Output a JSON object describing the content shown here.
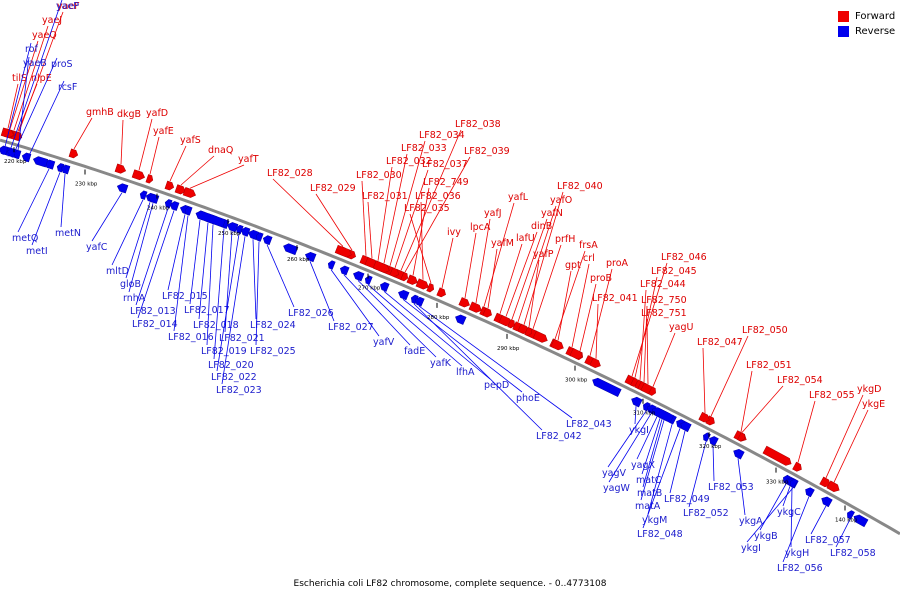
{
  "legend": {
    "forward_label": "Forward",
    "reverse_label": "Reverse",
    "forward_color": "#ee0000",
    "reverse_color": "#0000ee"
  },
  "caption": "Escherichia coli LF82 chromosome, complete sequence. - 0..4773108",
  "backbone_color": "#888888",
  "ticks": [
    "220 kbp",
    "230 kbp",
    "240 kbp",
    "250 kbp",
    "260 kbp",
    "270 kbp",
    "280 kbp",
    "290 kbp",
    "300 kbp",
    "310 kbp",
    "320 kbp",
    "330 kbp",
    "140 kbp"
  ],
  "forward_genes": [
    "yaeF",
    "yaeJ",
    "yaeQ",
    "tilS",
    "nlpE",
    "gmhB",
    "dkgB",
    "yafD",
    "yafE",
    "yafS",
    "dnaQ",
    "yafT",
    "LF82_028",
    "LF82_029",
    "LF82_030",
    "LF82_031",
    "LF82_032",
    "LF82_033",
    "LF82_034",
    "LF82_038",
    "LF82_039",
    "LF82_037",
    "LF82_749",
    "LF82_036",
    "LF82_035",
    "ivy",
    "lpcA",
    "yafJ",
    "yafL",
    "yafM",
    "lafU",
    "dinB",
    "yafN",
    "yafO",
    "LF82_040",
    "prfH",
    "yafP",
    "frsA",
    "crl",
    "gpt",
    "proB",
    "proA",
    "LF82_041",
    "LF82_046",
    "LF82_045",
    "LF82_044",
    "LF82_750",
    "LF82_751",
    "yagU",
    "LF82_050",
    "LF82_047",
    "LF82_051",
    "LF82_054",
    "LF82_055",
    "ykgD",
    "ykgE"
  ],
  "reverse_genes": [
    "yaeP",
    "rof",
    "proS",
    "yaeB",
    "rcsF",
    "metQ",
    "metI",
    "metN",
    "yafC",
    "mltD",
    "gloB",
    "rnhA",
    "LF82_013",
    "LF82_014",
    "LF82_015",
    "LF82_016",
    "LF82_017",
    "LF82_018",
    "LF82_019",
    "LF82_020",
    "LF82_021",
    "LF82_022",
    "LF82_023",
    "LF82_024",
    "LF82_025",
    "LF82_026",
    "LF82_027",
    "yafV",
    "fadE",
    "yafK",
    "lfhA",
    "pepD",
    "phoE",
    "LF82_042",
    "LF82_043",
    "ykgI",
    "yagV",
    "yagW",
    "yagX",
    "matC",
    "matB",
    "matA",
    "ykgM",
    "LF82_048",
    "LF82_049",
    "LF82_052",
    "LF82_053",
    "ykgA",
    "ykgB",
    "ykgC",
    "ykgH",
    "ykgI",
    "LF82_056",
    "LF82_057",
    "LF82_058"
  ]
}
